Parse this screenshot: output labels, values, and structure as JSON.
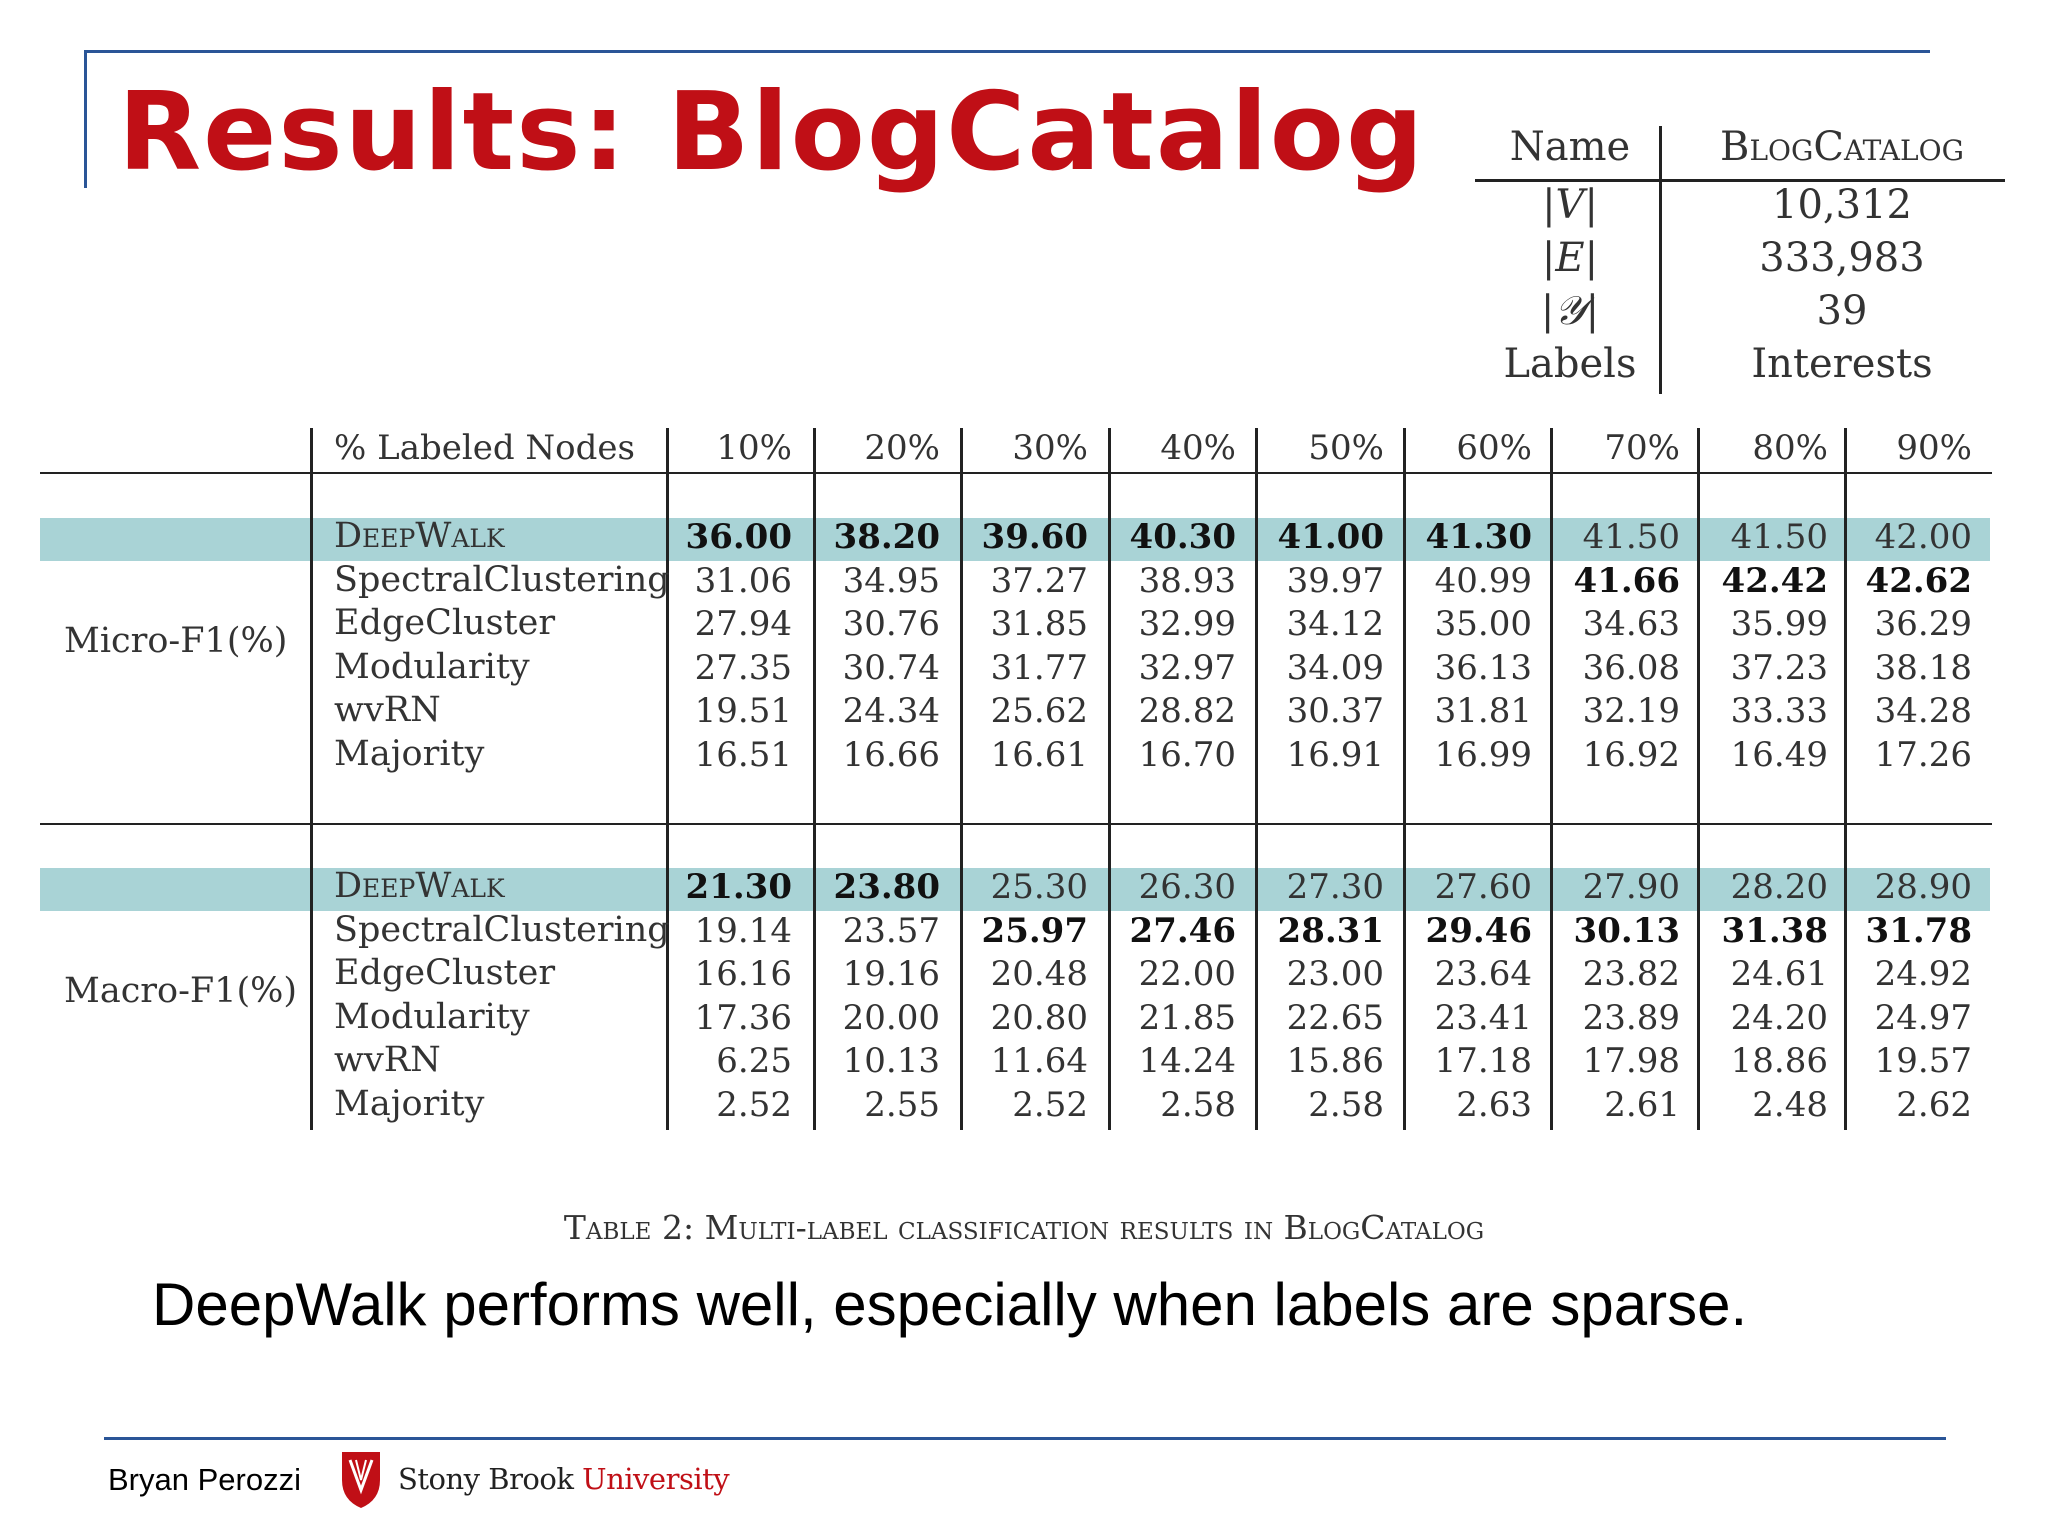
{
  "title": "Results: BlogCatalog",
  "stats_table": {
    "header": [
      "Name",
      "BlogCatalog"
    ],
    "rows": [
      [
        "|V|",
        "10,312"
      ],
      [
        "|E|",
        "333,983"
      ],
      [
        "|𝒴|",
        "39"
      ],
      [
        "Labels",
        "Interests"
      ]
    ]
  },
  "results_table": {
    "header_label": "% Labeled Nodes",
    "columns": [
      "10%",
      "20%",
      "30%",
      "40%",
      "50%",
      "60%",
      "70%",
      "80%",
      "90%"
    ],
    "groups": [
      {
        "name": "Micro-F1(%)",
        "rows": [
          {
            "method": "DeepWalk",
            "values": [
              "36.00",
              "38.20",
              "39.60",
              "40.30",
              "41.00",
              "41.30",
              "41.50",
              "41.50",
              "42.00"
            ],
            "bold": [
              true,
              true,
              true,
              true,
              true,
              true,
              false,
              false,
              false
            ],
            "highlight": true
          },
          {
            "method": "SpectralClustering",
            "values": [
              "31.06",
              "34.95",
              "37.27",
              "38.93",
              "39.97",
              "40.99",
              "41.66",
              "42.42",
              "42.62"
            ],
            "bold": [
              false,
              false,
              false,
              false,
              false,
              false,
              true,
              true,
              true
            ]
          },
          {
            "method": "EdgeCluster",
            "values": [
              "27.94",
              "30.76",
              "31.85",
              "32.99",
              "34.12",
              "35.00",
              "34.63",
              "35.99",
              "36.29"
            ],
            "bold": [
              false,
              false,
              false,
              false,
              false,
              false,
              false,
              false,
              false
            ]
          },
          {
            "method": "Modularity",
            "values": [
              "27.35",
              "30.74",
              "31.77",
              "32.97",
              "34.09",
              "36.13",
              "36.08",
              "37.23",
              "38.18"
            ],
            "bold": [
              false,
              false,
              false,
              false,
              false,
              false,
              false,
              false,
              false
            ]
          },
          {
            "method": "wvRN",
            "values": [
              "19.51",
              "24.34",
              "25.62",
              "28.82",
              "30.37",
              "31.81",
              "32.19",
              "33.33",
              "34.28"
            ],
            "bold": [
              false,
              false,
              false,
              false,
              false,
              false,
              false,
              false,
              false
            ]
          },
          {
            "method": "Majority",
            "values": [
              "16.51",
              "16.66",
              "16.61",
              "16.70",
              "16.91",
              "16.99",
              "16.92",
              "16.49",
              "17.26"
            ],
            "bold": [
              false,
              false,
              false,
              false,
              false,
              false,
              false,
              false,
              false
            ]
          }
        ]
      },
      {
        "name": "Macro-F1(%)",
        "rows": [
          {
            "method": "DeepWalk",
            "values": [
              "21.30",
              "23.80",
              "25.30",
              "26.30",
              "27.30",
              "27.60",
              "27.90",
              "28.20",
              "28.90"
            ],
            "bold": [
              true,
              true,
              false,
              false,
              false,
              false,
              false,
              false,
              false
            ],
            "highlight": true
          },
          {
            "method": "SpectralClustering",
            "values": [
              "19.14",
              "23.57",
              "25.97",
              "27.46",
              "28.31",
              "29.46",
              "30.13",
              "31.38",
              "31.78"
            ],
            "bold": [
              false,
              false,
              true,
              true,
              true,
              true,
              true,
              true,
              true
            ]
          },
          {
            "method": "EdgeCluster",
            "values": [
              "16.16",
              "19.16",
              "20.48",
              "22.00",
              "23.00",
              "23.64",
              "23.82",
              "24.61",
              "24.92"
            ],
            "bold": [
              false,
              false,
              false,
              false,
              false,
              false,
              false,
              false,
              false
            ]
          },
          {
            "method": "Modularity",
            "values": [
              "17.36",
              "20.00",
              "20.80",
              "21.85",
              "22.65",
              "23.41",
              "23.89",
              "24.20",
              "24.97"
            ],
            "bold": [
              false,
              false,
              false,
              false,
              false,
              false,
              false,
              false,
              false
            ]
          },
          {
            "method": "wvRN",
            "values": [
              "6.25",
              "10.13",
              "11.64",
              "14.24",
              "15.86",
              "17.18",
              "17.98",
              "18.86",
              "19.57"
            ],
            "bold": [
              false,
              false,
              false,
              false,
              false,
              false,
              false,
              false,
              false
            ]
          },
          {
            "method": "Majority",
            "values": [
              "2.52",
              "2.55",
              "2.52",
              "2.58",
              "2.58",
              "2.63",
              "2.61",
              "2.48",
              "2.62"
            ],
            "bold": [
              false,
              false,
              false,
              false,
              false,
              false,
              false,
              false,
              false
            ]
          }
        ]
      }
    ]
  },
  "caption": "Table 2: Multi-label classification results in BlogCatalog",
  "summary": "DeepWalk performs well, especially when labels are sparse.",
  "footer": {
    "author": "Bryan Perozzi",
    "university_part1": "Stony Brook",
    "university_part2": "University",
    "colors": {
      "brand_red": "#c00f16",
      "rule_blue": "#2a5597",
      "highlight": "#a9d3d6"
    }
  }
}
